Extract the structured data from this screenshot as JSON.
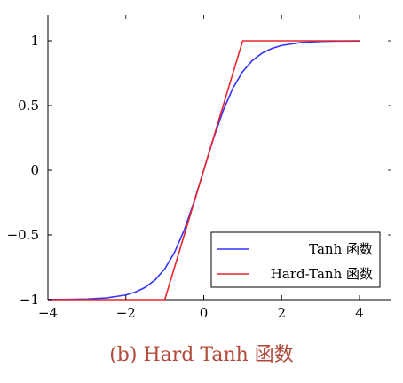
{
  "chart_data": {
    "type": "line",
    "caption": "(b) Hard Tanh 函数",
    "xlabel": "",
    "ylabel": "",
    "xlim": [
      -4,
      4.8
    ],
    "ylim": [
      -1,
      1.2
    ],
    "x_ticks": [
      -4,
      -2,
      0,
      2,
      4
    ],
    "x_tick_labels": [
      "−4",
      "−2",
      "0",
      "2",
      "4"
    ],
    "y_ticks": [
      -1,
      -0.5,
      0,
      0.5,
      1
    ],
    "y_tick_labels": [
      "−1",
      "−0.5",
      "0",
      "0.5",
      "1"
    ],
    "grid": false,
    "legend_position": "bottom-right",
    "series": [
      {
        "name": "Tanh 函数",
        "color": "#3333ff",
        "x": [
          -4,
          -3.5,
          -3,
          -2.5,
          -2,
          -1.75,
          -1.5,
          -1.25,
          -1,
          -0.75,
          -0.5,
          -0.25,
          0,
          0.25,
          0.5,
          0.75,
          1,
          1.25,
          1.5,
          1.75,
          2,
          2.5,
          3,
          3.5,
          4
        ],
        "values": [
          -0.999,
          -0.998,
          -0.995,
          -0.987,
          -0.964,
          -0.941,
          -0.905,
          -0.848,
          -0.762,
          -0.635,
          -0.462,
          -0.245,
          0,
          0.245,
          0.462,
          0.635,
          0.762,
          0.848,
          0.905,
          0.941,
          0.964,
          0.987,
          0.995,
          0.998,
          0.999
        ]
      },
      {
        "name": "Hard-Tanh 函数",
        "color": "#e8262c",
        "x": [
          -4,
          -1,
          1,
          4
        ],
        "values": [
          -1,
          -1,
          1,
          1
        ]
      }
    ]
  }
}
